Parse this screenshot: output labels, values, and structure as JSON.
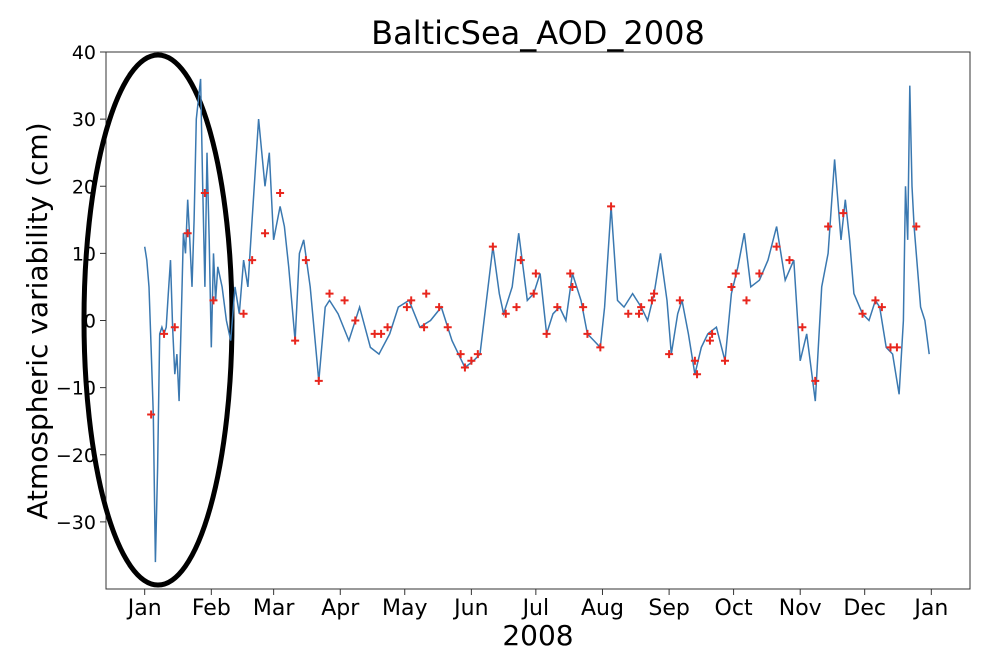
{
  "chart_data": {
    "type": "line",
    "title": "BalticSea_AOD_2008",
    "xlabel": "2008",
    "ylabel": "Atmospheric variability (cm)",
    "xlim": [
      -18,
      384
    ],
    "xticks": [
      {
        "value": 0,
        "label": "Jan"
      },
      {
        "value": 31,
        "label": "Feb"
      },
      {
        "value": 60,
        "label": "Mar"
      },
      {
        "value": 91,
        "label": "Apr"
      },
      {
        "value": 121,
        "label": "May"
      },
      {
        "value": 152,
        "label": "Jun"
      },
      {
        "value": 182,
        "label": "Jul"
      },
      {
        "value": 213,
        "label": "Aug"
      },
      {
        "value": 244,
        "label": "Sep"
      },
      {
        "value": 274,
        "label": "Oct"
      },
      {
        "value": 305,
        "label": "Nov"
      },
      {
        "value": 335,
        "label": "Dec"
      },
      {
        "value": 366,
        "label": "Jan"
      }
    ],
    "ylim": [
      -40,
      40
    ],
    "yticks": [
      {
        "value": -30,
        "label": "−30"
      },
      {
        "value": -20,
        "label": "−20"
      },
      {
        "value": -10,
        "label": "−10"
      },
      0,
      10,
      20,
      30,
      40
    ],
    "grid": false,
    "series": [
      {
        "color": "#3a78b0",
        "marker": "none",
        "x": [
          0,
          1,
          2,
          3,
          4,
          5,
          6,
          7,
          8,
          9,
          10,
          11,
          12,
          13,
          14,
          15,
          16,
          17,
          18,
          19,
          20,
          21,
          22,
          23,
          24,
          26,
          27,
          28,
          29,
          30,
          31,
          32,
          33,
          34,
          36,
          38,
          40,
          42,
          44,
          46,
          48,
          50,
          53,
          56,
          58,
          60,
          63,
          65,
          67,
          70,
          72,
          74,
          77,
          81,
          84,
          86,
          90,
          95,
          100,
          105,
          109,
          114,
          118,
          123,
          128,
          133,
          138,
          143,
          149,
          153,
          156,
          162,
          165,
          167,
          171,
          174,
          178,
          181,
          184,
          187,
          190,
          193,
          196,
          199,
          203,
          206,
          209,
          212,
          214,
          217,
          220,
          223,
          227,
          231,
          234,
          237,
          240,
          243,
          245,
          248,
          250,
          253,
          256,
          259,
          262,
          266,
          270,
          273,
          276,
          279,
          282,
          286,
          290,
          294,
          298,
          302,
          305,
          308,
          312,
          315,
          318,
          321,
          324,
          326,
          328,
          330,
          334,
          337,
          340,
          342,
          345,
          348,
          351,
          353,
          354,
          355,
          356,
          357,
          358,
          361,
          363,
          365
        ],
        "values": [
          11,
          9,
          5,
          -4,
          -14,
          -36,
          -22,
          -2,
          -1,
          -2,
          -1,
          4,
          9,
          -1,
          -8,
          -5,
          -12,
          0,
          13,
          10,
          18,
          12,
          5,
          15,
          30,
          36,
          20,
          5,
          25,
          12,
          -4,
          10,
          3,
          8,
          5,
          0,
          -3,
          5,
          1,
          9,
          5,
          15,
          30,
          20,
          25,
          12,
          17,
          14,
          8,
          -3,
          10,
          12,
          5,
          -9,
          2,
          3,
          1,
          -3,
          2,
          -4,
          -5,
          -2,
          2,
          3,
          -1,
          0,
          2,
          -3,
          -7,
          -6,
          -5,
          11,
          4,
          1,
          5,
          13,
          3,
          4,
          7,
          -2,
          1,
          2,
          0,
          7,
          3,
          -2,
          -3,
          -4,
          2,
          17,
          3,
          2,
          4,
          2,
          0,
          4,
          10,
          3,
          -5,
          1,
          3,
          -2,
          -8,
          -4,
          -2,
          -1,
          -6,
          4,
          8,
          13,
          5,
          6,
          9,
          14,
          6,
          9,
          -6,
          -2,
          -12,
          5,
          10,
          24,
          12,
          18,
          12,
          4,
          1,
          0,
          3,
          2,
          -4,
          -5,
          -11,
          0,
          20,
          12,
          35,
          20,
          14,
          2,
          0,
          -5
        ]
      },
      {
        "color": "#e8261d",
        "marker": "+",
        "x": [
          3,
          9,
          14,
          20,
          28,
          32,
          46,
          50,
          56,
          63,
          70,
          75,
          81,
          86,
          93,
          98,
          107,
          110,
          113,
          122,
          124,
          130,
          131,
          137,
          141,
          147,
          149,
          152,
          155,
          162,
          168,
          173,
          175,
          181,
          182,
          187,
          192,
          198,
          199,
          204,
          206,
          212,
          217,
          225,
          230,
          231,
          236,
          237,
          244,
          249,
          256,
          257,
          263,
          264,
          270,
          273,
          275,
          280,
          286,
          294,
          300,
          306,
          312,
          318,
          325,
          334,
          340,
          343,
          347,
          350,
          359
        ],
        "values": [
          -14,
          -2,
          -1,
          13,
          19,
          3,
          1,
          9,
          13,
          19,
          -3,
          9,
          -9,
          4,
          3,
          0,
          -2,
          -2,
          -1,
          2,
          3,
          -1,
          4,
          2,
          -1,
          -5,
          -7,
          -6,
          -5,
          11,
          1,
          2,
          9,
          4,
          7,
          -2,
          2,
          7,
          5,
          2,
          -2,
          -4,
          17,
          1,
          1,
          2,
          3,
          4,
          -5,
          3,
          -6,
          -8,
          -3,
          -2,
          -6,
          5,
          7,
          3,
          7,
          11,
          9,
          -1,
          -9,
          14,
          16,
          1,
          3,
          2,
          -4,
          -4,
          14
        ]
      }
    ]
  }
}
